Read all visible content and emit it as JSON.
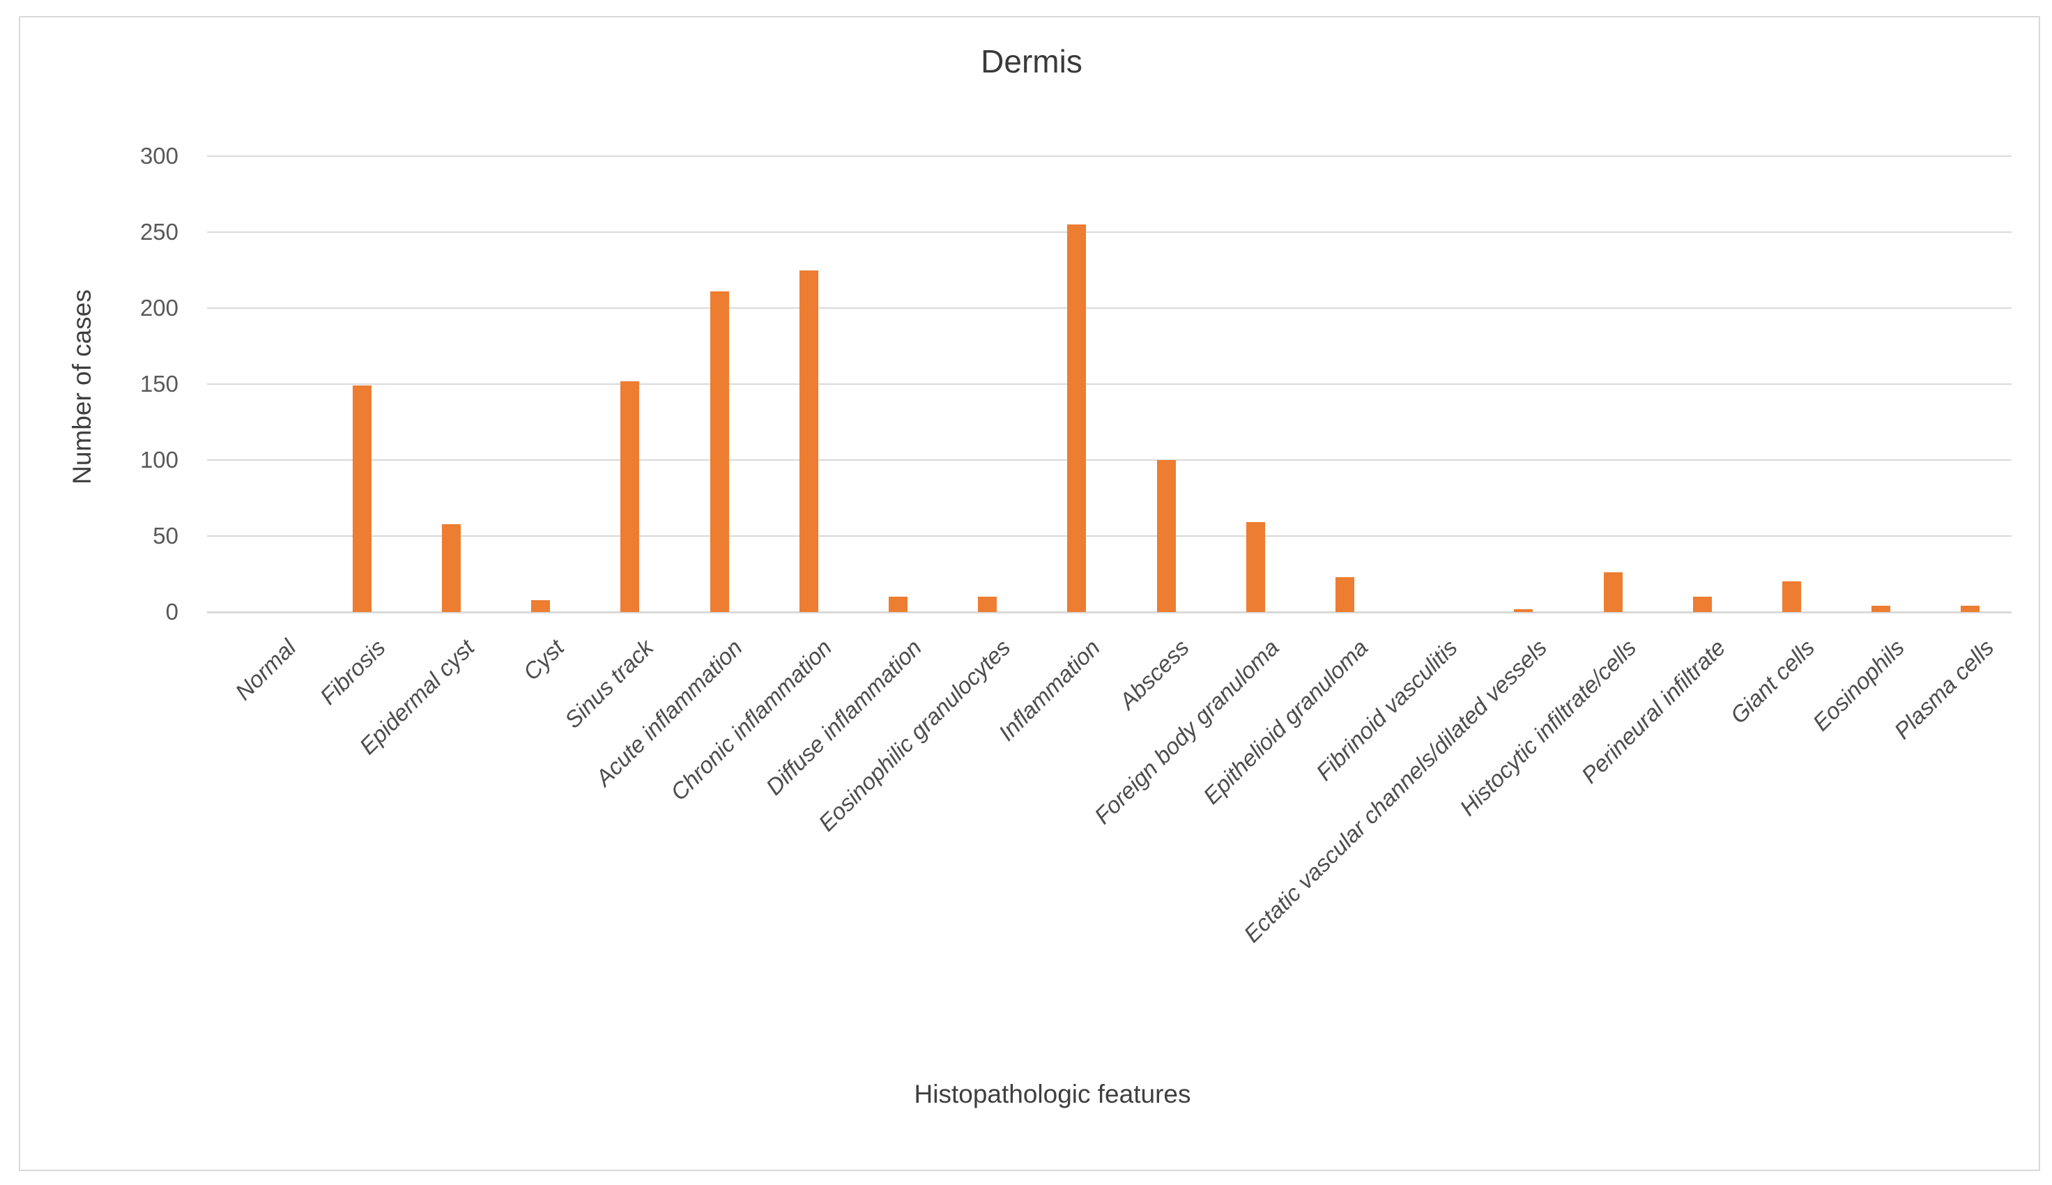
{
  "chart_data": {
    "type": "bar",
    "title": "Dermis",
    "xlabel": "Histopathologic features",
    "ylabel": "Number of cases",
    "categories": [
      "Normal",
      "Fibrosis",
      "Epidermal cyst",
      "Cyst",
      "Sinus track",
      "Acute inflammation",
      "Chronic inflammation",
      "Diffuse inflammation",
      "Eosinophilic granulocytes",
      "Inflammation",
      "Abscess",
      "Foreign body granuloma",
      "Epithelioid granuloma",
      "Fibrinoid vasculitis",
      "Ectatic vascular channels/dilated vessels",
      "Histocytic infiltrate/cells",
      "Perineural infiltrate",
      "Giant cells",
      "Eosinophils",
      "Plasma cells"
    ],
    "values": [
      0,
      149,
      58,
      8,
      152,
      211,
      225,
      10,
      10,
      255,
      100,
      59,
      23,
      0,
      2,
      26,
      10,
      20,
      4,
      4
    ],
    "ylim": [
      0,
      300
    ],
    "yticks": [
      0,
      50,
      100,
      150,
      200,
      250,
      300
    ],
    "grid": "horizontal",
    "legend": "none",
    "bar_color": "#ED7D31",
    "gridline_color": "#D9D9D9",
    "axis_line_color": "#D9D9D9",
    "tick_label_color": "#595959",
    "category_label_color": "#4D4D4D",
    "title_color": "#3A3A3A",
    "background_color": "#FFFFFF",
    "border_color": "#D9D9D9",
    "category_label_rotation_deg": 45,
    "category_label_style": "italic"
  }
}
